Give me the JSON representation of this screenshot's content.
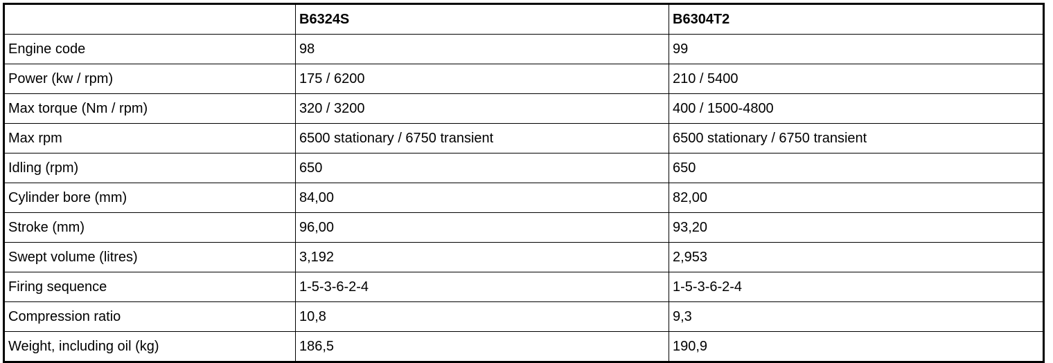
{
  "table": {
    "headers": [
      "",
      "B6324S",
      "B6304T2"
    ],
    "rows": [
      [
        "Engine code",
        "98",
        "99"
      ],
      [
        "Power (kw / rpm)",
        "175 / 6200",
        "210 / 5400"
      ],
      [
        "Max torque (Nm / rpm)",
        "320 / 3200",
        "400 / 1500-4800"
      ],
      [
        "Max rpm",
        "6500 stationary / 6750 transient",
        "6500 stationary / 6750 transient"
      ],
      [
        "Idling (rpm)",
        "650",
        "650"
      ],
      [
        "Cylinder bore (mm)",
        "84,00",
        "82,00"
      ],
      [
        "Stroke (mm)",
        "96,00",
        "93,20"
      ],
      [
        "Swept volume (litres)",
        "3,192",
        "2,953"
      ],
      [
        "Firing sequence",
        "1-5-3-6-2-4",
        "1-5-3-6-2-4"
      ],
      [
        "Compression ratio",
        "10,8",
        "9,3"
      ],
      [
        "Weight, including oil (kg)",
        "186,5",
        "190,9"
      ]
    ]
  }
}
